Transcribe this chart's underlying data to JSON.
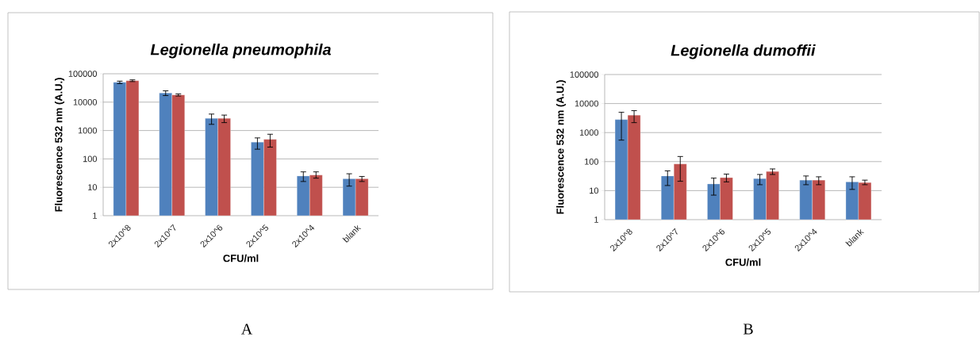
{
  "chart_data": [
    {
      "type": "bar",
      "title": "*Legionella pneumophila*",
      "xlabel": "CFU/ml",
      "ylabel": "Fluorescence 532 nm (A.U.)",
      "categories": [
        "2x10^8",
        "2x10^7",
        "2x10^6",
        "2x10^5",
        "2x10^4",
        "blank"
      ],
      "series": [
        {
          "color": "#4f81bd",
          "values": [
            50000,
            21000,
            2700,
            390,
            25,
            20
          ],
          "errors": [
            [
              45000,
              55000
            ],
            [
              17000,
              25000
            ],
            [
              1650,
              3800
            ],
            [
              220,
              550
            ],
            [
              16,
              35
            ],
            [
              11,
              30
            ]
          ]
        },
        {
          "color": "#c0504d",
          "values": [
            57000,
            18000,
            2700,
            490,
            27,
            20
          ],
          "errors": [
            [
              53000,
              61000
            ],
            [
              16500,
              19500
            ],
            [
              1900,
              3500
            ],
            [
              260,
              740
            ],
            [
              21,
              35
            ],
            [
              16,
              24
            ]
          ]
        }
      ],
      "ylim": [
        1,
        100000
      ],
      "yticks": [
        1,
        10,
        100,
        1000,
        10000,
        100000
      ],
      "log": "y",
      "grid": "y",
      "annotations": [
        "A"
      ]
    },
    {
      "type": "bar",
      "title": "*Legionella dumoffii*",
      "xlabel": "CFU/ml",
      "ylabel": "Fluorescence 532 nm (A.U.)",
      "categories": [
        "2x10^8",
        "2x10^7",
        "2x10^6",
        "2x10^5",
        "2x10^4",
        "blank"
      ],
      "series": [
        {
          "color": "#4f81bd",
          "values": [
            2800,
            32,
            17,
            26,
            23,
            20
          ],
          "errors": [
            [
              550,
              5000
            ],
            [
              15,
              48
            ],
            [
              7,
              27
            ],
            [
              16,
              36
            ],
            [
              16,
              32
            ],
            [
              11,
              30
            ]
          ]
        },
        {
          "color": "#c0504d",
          "values": [
            4000,
            83,
            28,
            46,
            23,
            19
          ],
          "errors": [
            [
              2200,
              5700
            ],
            [
              21,
              150
            ],
            [
              20,
              37
            ],
            [
              36,
              56
            ],
            [
              16,
              30
            ],
            [
              16,
              23
            ]
          ]
        }
      ],
      "ylim": [
        1,
        100000
      ],
      "yticks": [
        1,
        10,
        100,
        1000,
        10000,
        100000
      ],
      "log": "y",
      "grid": "y",
      "annotations": [
        "B"
      ]
    }
  ]
}
